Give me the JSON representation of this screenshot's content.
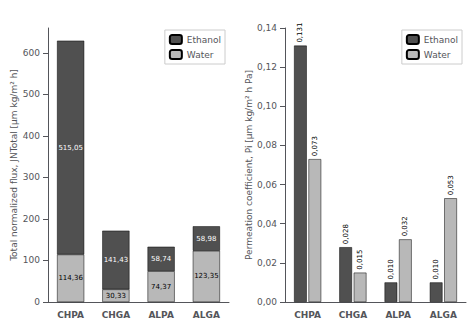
{
  "chart_data": [
    {
      "type": "bar",
      "stacked": true,
      "categories": [
        "CHPA",
        "CHGA",
        "ALPA",
        "ALGA"
      ],
      "series": [
        {
          "name": "Water",
          "color": "#b8b8b8",
          "values": [
            114.36,
            30.33,
            74.37,
            123.35
          ],
          "value_labels": [
            "114,36",
            "30,33",
            "74,37",
            "123,35"
          ]
        },
        {
          "name": "Ethanol",
          "color": "#505050",
          "values": [
            515.05,
            141.43,
            58.74,
            58.98
          ],
          "value_labels": [
            "515,05",
            "141,43",
            "58,74",
            "58,98"
          ]
        }
      ],
      "ylabel": "Total normalized flux, JNTotal [μm kg/m² h]",
      "ylim": [
        0,
        660
      ],
      "yticks": [
        0,
        100,
        200,
        300,
        400,
        500,
        600
      ],
      "data_labels": true,
      "legend": "upper right",
      "grid": false
    },
    {
      "type": "bar",
      "stacked": false,
      "categories": [
        "CHPA",
        "CHGA",
        "ALPA",
        "ALGA"
      ],
      "series": [
        {
          "name": "Ethanol",
          "color": "#505050",
          "values": [
            0.131,
            0.028,
            0.01,
            0.01
          ],
          "value_labels": [
            "0,131",
            "0,028",
            "0,010",
            "0,010"
          ]
        },
        {
          "name": "Water",
          "color": "#b8b8b8",
          "values": [
            0.073,
            0.015,
            0.032,
            0.053
          ],
          "value_labels": [
            "0,073",
            "0,015",
            "0,032",
            "0,053"
          ]
        }
      ],
      "ylabel": "Permeation coefficient, Pi [μm kg/m² h Pa]",
      "ylim": [
        0,
        0.14
      ],
      "yticks": [
        {
          "value": 0.0,
          "label": "0,00"
        },
        {
          "value": 0.02,
          "label": "0,02"
        },
        {
          "value": 0.04,
          "label": "0,04"
        },
        {
          "value": 0.06,
          "label": "0,06"
        },
        {
          "value": 0.08,
          "label": "0,08"
        },
        {
          "value": 0.1,
          "label": "0,10"
        },
        {
          "value": 0.12,
          "label": "0,12"
        },
        {
          "value": 0.14,
          "label": "0,14"
        }
      ],
      "data_labels": true,
      "legend": "upper right",
      "grid": false
    }
  ]
}
